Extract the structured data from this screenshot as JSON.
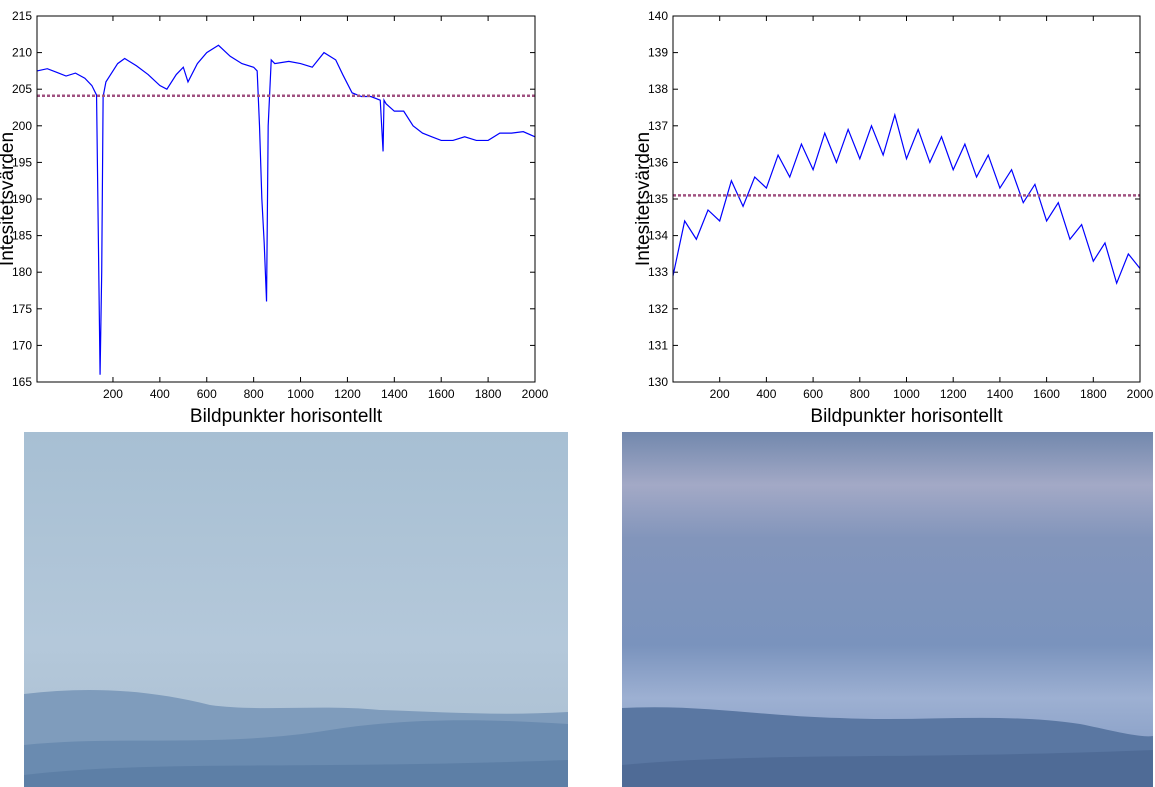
{
  "chart_data": [
    {
      "type": "line",
      "ylabel": "Intesitetsvärden",
      "xlabel": "Bildpunkter horisontellt",
      "xlim": [
        -124,
        2000
      ],
      "ylim": [
        165,
        215
      ],
      "xticks": [
        200,
        400,
        600,
        800,
        1000,
        1200,
        1400,
        1600,
        1800,
        2000
      ],
      "yticks": [
        165,
        170,
        175,
        180,
        185,
        190,
        195,
        200,
        205,
        210,
        215
      ],
      "series": [
        {
          "color": "#0000ff",
          "x": [
            -124,
            -80,
            -40,
            0,
            40,
            80,
            110,
            130,
            145,
            152,
            158,
            170,
            190,
            220,
            250,
            300,
            350,
            400,
            430,
            470,
            500,
            520,
            560,
            600,
            650,
            700,
            750,
            800,
            815,
            825,
            835,
            845,
            855,
            862,
            875,
            890,
            950,
            1000,
            1050,
            1100,
            1150,
            1180,
            1220,
            1260,
            1300,
            1340,
            1352,
            1356,
            1365,
            1400,
            1440,
            1480,
            1520,
            1560,
            1600,
            1650,
            1700,
            1750,
            1800,
            1850,
            1900,
            1950,
            2000
          ],
          "values": [
            207.5,
            207.8,
            207.3,
            206.8,
            207.2,
            206.5,
            205.5,
            204.2,
            166,
            180,
            204,
            206,
            207,
            208.5,
            209.2,
            208.2,
            207,
            205.5,
            205,
            207,
            208,
            206,
            208.5,
            210,
            211,
            209.5,
            208.5,
            208,
            207.5,
            200,
            190,
            184,
            176,
            200,
            209,
            208.5,
            208.8,
            208.5,
            208,
            210,
            209,
            207,
            204.5,
            204,
            204,
            203.5,
            196.5,
            203.5,
            203,
            202,
            202,
            200,
            199,
            198.5,
            198,
            198,
            198.5,
            198,
            198,
            199,
            199,
            199.2,
            198.5
          ]
        },
        {
          "color": "#a05080",
          "x": [
            -124,
            2000
          ],
          "values": [
            204.1,
            204.1
          ]
        }
      ]
    },
    {
      "type": "line",
      "ylabel": "Intesitetsvärden",
      "xlabel": "Bildpunkter horisontellt",
      "xlim": [
        0,
        2000
      ],
      "ylim": [
        130,
        140
      ],
      "xticks": [
        200,
        400,
        600,
        800,
        1000,
        1200,
        1400,
        1600,
        1800,
        2000
      ],
      "yticks": [
        130,
        131,
        132,
        133,
        134,
        135,
        136,
        137,
        138,
        139,
        140
      ],
      "series": [
        {
          "color": "#0000ff",
          "x": [
            0,
            50,
            100,
            150,
            200,
            250,
            300,
            350,
            400,
            450,
            500,
            550,
            600,
            650,
            700,
            750,
            800,
            850,
            900,
            950,
            1000,
            1050,
            1100,
            1150,
            1200,
            1250,
            1300,
            1350,
            1400,
            1450,
            1500,
            1550,
            1600,
            1650,
            1700,
            1750,
            1800,
            1850,
            1900,
            1950,
            2000
          ],
          "values": [
            132.9,
            134.4,
            133.9,
            134.7,
            134.4,
            135.5,
            134.8,
            135.6,
            135.3,
            136.2,
            135.6,
            136.5,
            135.8,
            136.8,
            136.0,
            136.9,
            136.1,
            137.0,
            136.2,
            137.3,
            136.1,
            136.9,
            136.0,
            136.7,
            135.8,
            136.5,
            135.6,
            136.2,
            135.3,
            135.8,
            134.9,
            135.4,
            134.4,
            134.9,
            133.9,
            134.3,
            133.3,
            133.8,
            132.7,
            133.5,
            133.1
          ]
        },
        {
          "color": "#a05080",
          "x": [
            0,
            2000
          ],
          "values": [
            135.1,
            135.1
          ]
        }
      ]
    }
  ]
}
